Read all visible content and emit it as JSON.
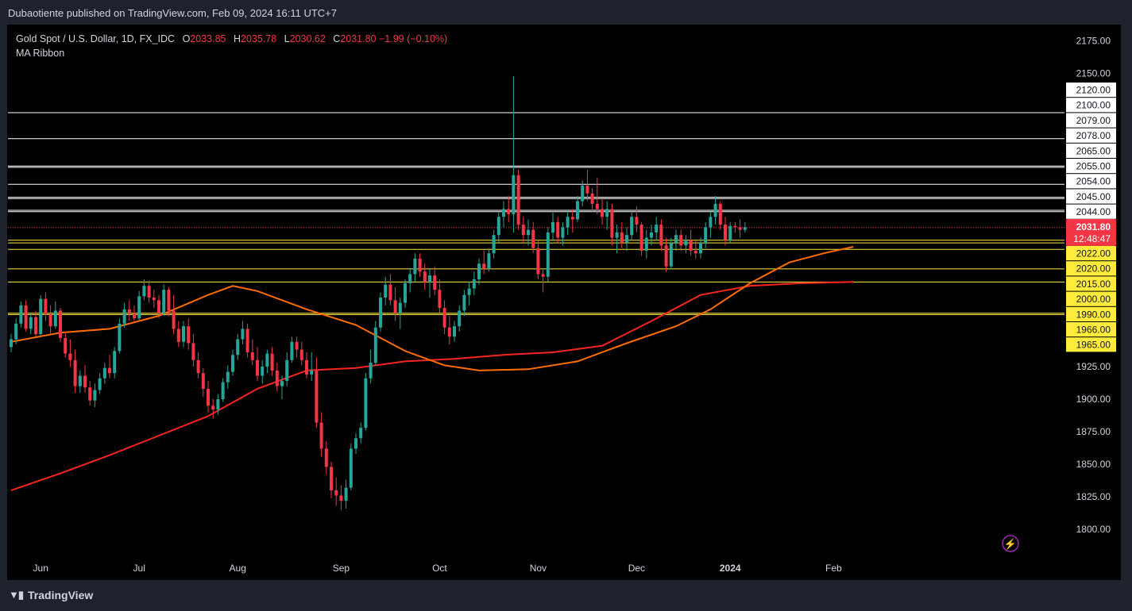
{
  "header": {
    "publisher": "Dubaotiente published on TradingView.com, Feb 09, 2024 16:11 UTC+7"
  },
  "legend": {
    "symbol": "Gold Spot / U.S. Dollar, 1D, FX_IDC",
    "o_label": "O",
    "o": "2033.85",
    "h_label": "H",
    "h": "2035.78",
    "l_label": "L",
    "l": "2030.62",
    "c_label": "C",
    "c": "2031.80",
    "change": "−1.99 (−0.10%)",
    "indicator": "MA Ribbon"
  },
  "footer": {
    "brand": "TradingView"
  },
  "colors": {
    "up": "#26a69a",
    "down": "#f23645",
    "ma_fast": "#ff6d00",
    "ma_slow": "#f7251d",
    "level_white": "#ffffff",
    "level_yellow": "#ffeb3b"
  },
  "chart_data": {
    "type": "candlestick",
    "y_range": [
      1780,
      2187
    ],
    "y_ticks": [
      "2175.00",
      "2150.00",
      "1925.00",
      "1900.00",
      "1875.00",
      "1850.00",
      "1825.00",
      "1800.00"
    ],
    "x_ticks": [
      "Jun",
      "Jul",
      "Aug",
      "Sep",
      "Oct",
      "Nov",
      "Dec",
      "2024",
      "Feb"
    ],
    "x_tick_days": [
      6,
      26,
      46,
      67,
      87,
      107,
      127,
      146,
      167
    ],
    "levels_white": [
      2120,
      2100,
      2079,
      2078,
      2065,
      2055,
      2054,
      2045,
      2044
    ],
    "levels_yellow": [
      2022,
      2020,
      2015,
      2000,
      1990,
      1966,
      1965
    ],
    "level_labels": [
      "2120.00",
      "2100.00",
      "2079.00",
      "2078.00",
      "2065.00",
      "2055.00",
      "2054.00",
      "2045.00",
      "2044.00",
      "2022.00",
      "2020.00",
      "2015.00",
      "2000.00",
      "1990.00",
      "1966.00",
      "1965.00"
    ],
    "current_price": {
      "value": 2031.8,
      "label": "2031.80",
      "countdown": "12:48:47"
    },
    "ma_fast_points": [
      [
        0,
        1944
      ],
      [
        10,
        1951
      ],
      [
        20,
        1954
      ],
      [
        30,
        1964
      ],
      [
        40,
        1980
      ],
      [
        45,
        1987
      ],
      [
        50,
        1983
      ],
      [
        60,
        1969
      ],
      [
        70,
        1957
      ],
      [
        80,
        1937
      ],
      [
        88,
        1926
      ],
      [
        95,
        1922
      ],
      [
        105,
        1923
      ],
      [
        115,
        1929
      ],
      [
        125,
        1943
      ],
      [
        135,
        1956
      ],
      [
        142,
        1969
      ],
      [
        150,
        1989
      ],
      [
        158,
        2005
      ],
      [
        165,
        2012
      ],
      [
        171,
        2017
      ]
    ],
    "ma_slow_points": [
      [
        0,
        1830
      ],
      [
        10,
        1843
      ],
      [
        20,
        1857
      ],
      [
        30,
        1872
      ],
      [
        40,
        1887
      ],
      [
        50,
        1908
      ],
      [
        60,
        1922
      ],
      [
        70,
        1924
      ],
      [
        80,
        1929
      ],
      [
        90,
        1931
      ],
      [
        100,
        1934
      ],
      [
        110,
        1936
      ],
      [
        120,
        1941
      ],
      [
        130,
        1960
      ],
      [
        140,
        1980
      ],
      [
        150,
        1987
      ],
      [
        160,
        1989
      ],
      [
        171,
        1990
      ]
    ],
    "candles": [
      [
        1940,
        1950,
        1936,
        1946
      ],
      [
        1946,
        1962,
        1942,
        1958
      ],
      [
        1958,
        1975,
        1955,
        1972
      ],
      [
        1972,
        1976,
        1952,
        1954
      ],
      [
        1954,
        1966,
        1950,
        1963
      ],
      [
        1963,
        1968,
        1948,
        1950
      ],
      [
        1950,
        1980,
        1948,
        1977
      ],
      [
        1977,
        1982,
        1960,
        1965
      ],
      [
        1965,
        1972,
        1950,
        1956
      ],
      [
        1956,
        1975,
        1954,
        1968
      ],
      [
        1968,
        1970,
        1944,
        1947
      ],
      [
        1947,
        1952,
        1932,
        1935
      ],
      [
        1935,
        1946,
        1925,
        1930
      ],
      [
        1930,
        1938,
        1905,
        1910
      ],
      [
        1910,
        1922,
        1905,
        1918
      ],
      [
        1918,
        1926,
        1905,
        1909
      ],
      [
        1909,
        1914,
        1895,
        1899
      ],
      [
        1899,
        1912,
        1894,
        1907
      ],
      [
        1907,
        1920,
        1904,
        1916
      ],
      [
        1916,
        1928,
        1912,
        1924
      ],
      [
        1924,
        1934,
        1916,
        1920
      ],
      [
        1920,
        1940,
        1916,
        1937
      ],
      [
        1937,
        1962,
        1935,
        1958
      ],
      [
        1958,
        1974,
        1955,
        1969
      ],
      [
        1969,
        1976,
        1960,
        1966
      ],
      [
        1966,
        1972,
        1960,
        1962
      ],
      [
        1962,
        1983,
        1960,
        1979
      ],
      [
        1979,
        1992,
        1976,
        1987
      ],
      [
        1987,
        1991,
        1974,
        1978
      ],
      [
        1978,
        1984,
        1970,
        1976
      ],
      [
        1976,
        1980,
        1962,
        1966
      ],
      [
        1966,
        1988,
        1964,
        1984
      ],
      [
        1984,
        1986,
        1964,
        1968
      ],
      [
        1968,
        1980,
        1950,
        1954
      ],
      [
        1954,
        1960,
        1940,
        1944
      ],
      [
        1944,
        1960,
        1940,
        1956
      ],
      [
        1956,
        1962,
        1938,
        1943
      ],
      [
        1943,
        1950,
        1925,
        1930
      ],
      [
        1930,
        1936,
        1916,
        1920
      ],
      [
        1920,
        1924,
        1902,
        1908
      ],
      [
        1908,
        1914,
        1890,
        1895
      ],
      [
        1895,
        1900,
        1885,
        1892
      ],
      [
        1892,
        1904,
        1888,
        1900
      ],
      [
        1900,
        1916,
        1898,
        1913
      ],
      [
        1913,
        1926,
        1908,
        1921
      ],
      [
        1921,
        1938,
        1918,
        1934
      ],
      [
        1934,
        1950,
        1930,
        1946
      ],
      [
        1946,
        1960,
        1942,
        1954
      ],
      [
        1954,
        1958,
        1932,
        1936
      ],
      [
        1936,
        1946,
        1926,
        1930
      ],
      [
        1930,
        1940,
        1914,
        1918
      ],
      [
        1918,
        1930,
        1912,
        1925
      ],
      [
        1925,
        1938,
        1920,
        1935
      ],
      [
        1935,
        1940,
        1918,
        1922
      ],
      [
        1922,
        1928,
        1906,
        1910
      ],
      [
        1910,
        1918,
        1900,
        1914
      ],
      [
        1914,
        1936,
        1910,
        1930
      ],
      [
        1930,
        1948,
        1928,
        1944
      ],
      [
        1944,
        1948,
        1932,
        1938
      ],
      [
        1938,
        1944,
        1926,
        1930
      ],
      [
        1930,
        1936,
        1916,
        1919
      ],
      [
        1919,
        1936,
        1914,
        1922
      ],
      [
        1922,
        1932,
        1878,
        1882
      ],
      [
        1882,
        1890,
        1856,
        1862
      ],
      [
        1862,
        1868,
        1842,
        1848
      ],
      [
        1848,
        1852,
        1824,
        1830
      ],
      [
        1830,
        1840,
        1818,
        1826
      ],
      [
        1826,
        1834,
        1815,
        1822
      ],
      [
        1822,
        1838,
        1816,
        1832
      ],
      [
        1832,
        1866,
        1830,
        1862
      ],
      [
        1862,
        1874,
        1858,
        1870
      ],
      [
        1870,
        1882,
        1866,
        1878
      ],
      [
        1878,
        1920,
        1876,
        1916
      ],
      [
        1916,
        1938,
        1912,
        1928
      ],
      [
        1928,
        1960,
        1926,
        1955
      ],
      [
        1955,
        1982,
        1952,
        1978
      ],
      [
        1978,
        1994,
        1972,
        1988
      ],
      [
        1988,
        1996,
        1972,
        1976
      ],
      [
        1976,
        1986,
        1960,
        1966
      ],
      [
        1966,
        1978,
        1954,
        1974
      ],
      [
        1974,
        1992,
        1970,
        1989
      ],
      [
        1989,
        2000,
        1982,
        1996
      ],
      [
        1996,
        2012,
        1990,
        2008
      ],
      [
        2008,
        2012,
        1994,
        1998
      ],
      [
        1998,
        2004,
        1984,
        1990
      ],
      [
        1990,
        2000,
        1978,
        1995
      ],
      [
        1995,
        2002,
        1980,
        1984
      ],
      [
        1984,
        1992,
        1966,
        1970
      ],
      [
        1970,
        1976,
        1950,
        1955
      ],
      [
        1955,
        1964,
        1942,
        1948
      ],
      [
        1948,
        1960,
        1944,
        1956
      ],
      [
        1956,
        1972,
        1952,
        1968
      ],
      [
        1968,
        1984,
        1964,
        1980
      ],
      [
        1980,
        1990,
        1972,
        1985
      ],
      [
        1985,
        1998,
        1980,
        1992
      ],
      [
        1992,
        2008,
        1988,
        2004
      ],
      [
        2004,
        2014,
        1996,
        2000
      ],
      [
        2000,
        2016,
        1998,
        2012
      ],
      [
        2012,
        2030,
        2008,
        2026
      ],
      [
        2026,
        2044,
        2020,
        2040
      ],
      [
        2040,
        2052,
        2032,
        2046
      ],
      [
        2046,
        2056,
        2036,
        2042
      ],
      [
        2042,
        2148,
        2028,
        2072
      ],
      [
        2072,
        2076,
        2030,
        2034
      ],
      [
        2034,
        2040,
        2020,
        2026
      ],
      [
        2026,
        2038,
        2018,
        2030
      ],
      [
        2030,
        2036,
        2012,
        2016
      ],
      [
        2016,
        2022,
        1992,
        1996
      ],
      [
        1996,
        2000,
        1982,
        1994
      ],
      [
        1994,
        2032,
        1990,
        2028
      ],
      [
        2028,
        2044,
        2022,
        2036
      ],
      [
        2036,
        2040,
        2020,
        2024
      ],
      [
        2024,
        2036,
        2018,
        2032
      ],
      [
        2032,
        2044,
        2026,
        2040
      ],
      [
        2040,
        2046,
        2028,
        2038
      ],
      [
        2038,
        2056,
        2036,
        2052
      ],
      [
        2052,
        2068,
        2048,
        2064
      ],
      [
        2064,
        2076,
        2052,
        2058
      ],
      [
        2058,
        2062,
        2044,
        2050
      ],
      [
        2050,
        2070,
        2042,
        2046
      ],
      [
        2046,
        2054,
        2034,
        2040
      ],
      [
        2040,
        2052,
        2030,
        2046
      ],
      [
        2046,
        2050,
        2018,
        2024
      ],
      [
        2024,
        2034,
        2012,
        2028
      ],
      [
        2028,
        2036,
        2016,
        2020
      ],
      [
        2020,
        2032,
        2014,
        2026
      ],
      [
        2026,
        2044,
        2022,
        2040
      ],
      [
        2040,
        2048,
        2028,
        2034
      ],
      [
        2034,
        2036,
        2010,
        2014
      ],
      [
        2014,
        2030,
        2008,
        2024
      ],
      [
        2024,
        2034,
        2018,
        2028
      ],
      [
        2028,
        2040,
        2022,
        2034
      ],
      [
        2034,
        2038,
        2014,
        2018
      ],
      [
        2018,
        2024,
        1998,
        2002
      ],
      [
        2002,
        2024,
        2000,
        2020
      ],
      [
        2020,
        2030,
        2014,
        2026
      ],
      [
        2026,
        2030,
        2014,
        2018
      ],
      [
        2018,
        2026,
        2012,
        2022
      ],
      [
        2022,
        2030,
        2010,
        2014
      ],
      [
        2014,
        2022,
        2008,
        2012
      ],
      [
        2012,
        2024,
        2008,
        2020
      ],
      [
        2020,
        2036,
        2016,
        2032
      ],
      [
        2032,
        2044,
        2024,
        2040
      ],
      [
        2040,
        2056,
        2034,
        2050
      ],
      [
        2050,
        2052,
        2030,
        2034
      ],
      [
        2034,
        2040,
        2018,
        2022
      ],
      [
        2022,
        2036,
        2020,
        2033
      ],
      [
        2033,
        2036,
        2028,
        2032
      ],
      [
        2032,
        2038,
        2024,
        2030
      ],
      [
        2030,
        2036,
        2028,
        2032
      ]
    ]
  }
}
